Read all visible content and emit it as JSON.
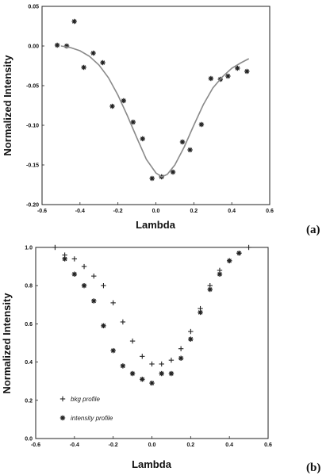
{
  "chart_data": [
    {
      "type": "scatter",
      "panel_label": "(a)",
      "xlabel": "Lambda",
      "ylabel": "Normalized Intensity",
      "xlim": [
        -0.6,
        0.6
      ],
      "ylim": [
        -0.2,
        0.05
      ],
      "xticks": [
        "-0.6",
        "-0.4",
        "-0.2",
        "0.0",
        "0.2",
        "0.4",
        "0.6"
      ],
      "yticks": [
        "0.05",
        "0.00",
        "-0.05",
        "-0.10",
        "-0.15",
        "-0.20"
      ],
      "series": [
        {
          "marker": "asterisk",
          "color": "#222222",
          "points": [
            [
              -0.52,
              0.001
            ],
            [
              -0.47,
              0.0
            ],
            [
              -0.43,
              0.031
            ],
            [
              -0.38,
              -0.027
            ],
            [
              -0.33,
              -0.009
            ],
            [
              -0.28,
              -0.021
            ],
            [
              -0.23,
              -0.076
            ],
            [
              -0.17,
              -0.069
            ],
            [
              -0.12,
              -0.096
            ],
            [
              -0.07,
              -0.117
            ],
            [
              -0.02,
              -0.167
            ],
            [
              0.03,
              -0.165
            ],
            [
              0.09,
              -0.159
            ],
            [
              0.14,
              -0.121
            ],
            [
              0.18,
              -0.131
            ],
            [
              0.24,
              -0.099
            ],
            [
              0.29,
              -0.041
            ],
            [
              0.34,
              -0.042
            ],
            [
              0.38,
              -0.038
            ],
            [
              0.43,
              -0.028
            ],
            [
              0.48,
              -0.032
            ]
          ]
        },
        {
          "style": "fit-curve",
          "color": "#8a8a8a",
          "points": [
            [
              -0.5,
              0.0
            ],
            [
              -0.45,
              -0.002
            ],
            [
              -0.4,
              -0.006
            ],
            [
              -0.35,
              -0.013
            ],
            [
              -0.3,
              -0.024
            ],
            [
              -0.25,
              -0.04
            ],
            [
              -0.2,
              -0.062
            ],
            [
              -0.15,
              -0.088
            ],
            [
              -0.1,
              -0.116
            ],
            [
              -0.05,
              -0.143
            ],
            [
              0.0,
              -0.16
            ],
            [
              0.03,
              -0.165
            ],
            [
              0.06,
              -0.162
            ],
            [
              0.1,
              -0.15
            ],
            [
              0.15,
              -0.127
            ],
            [
              0.2,
              -0.1
            ],
            [
              0.25,
              -0.074
            ],
            [
              0.3,
              -0.053
            ],
            [
              0.35,
              -0.039
            ],
            [
              0.4,
              -0.028
            ],
            [
              0.45,
              -0.021
            ],
            [
              0.49,
              -0.016
            ]
          ]
        }
      ]
    },
    {
      "type": "scatter",
      "panel_label": "(b)",
      "xlabel": "Lambda",
      "ylabel": "Normalized Intensity",
      "xlim": [
        -0.6,
        0.6
      ],
      "ylim": [
        0.0,
        1.0
      ],
      "xticks": [
        "-0.6",
        "-0.4",
        "-0.2",
        "0.0",
        "0.2",
        "0.4",
        "0.6"
      ],
      "yticks": [
        "1.0",
        "0.8",
        "0.6",
        "0.4",
        "0.2",
        "0.0"
      ],
      "series": [
        {
          "name": "bkg profile",
          "marker": "plus",
          "color": "#222222",
          "points": [
            [
              -0.5,
              1.0
            ],
            [
              -0.45,
              0.96
            ],
            [
              -0.4,
              0.94
            ],
            [
              -0.35,
              0.9
            ],
            [
              -0.3,
              0.85
            ],
            [
              -0.25,
              0.8
            ],
            [
              -0.2,
              0.71
            ],
            [
              -0.15,
              0.61
            ],
            [
              -0.1,
              0.51
            ],
            [
              -0.05,
              0.43
            ],
            [
              0.0,
              0.39
            ],
            [
              0.05,
              0.39
            ],
            [
              0.1,
              0.41
            ],
            [
              0.15,
              0.47
            ],
            [
              0.2,
              0.56
            ],
            [
              0.25,
              0.68
            ],
            [
              0.3,
              0.8
            ],
            [
              0.35,
              0.88
            ],
            [
              0.4,
              0.93
            ],
            [
              0.45,
              0.97
            ],
            [
              0.5,
              1.0
            ]
          ]
        },
        {
          "name": "intensity profile",
          "marker": "asterisk",
          "color": "#222222",
          "points": [
            [
              -0.45,
              0.94
            ],
            [
              -0.4,
              0.86
            ],
            [
              -0.35,
              0.8
            ],
            [
              -0.3,
              0.72
            ],
            [
              -0.25,
              0.59
            ],
            [
              -0.2,
              0.46
            ],
            [
              -0.15,
              0.38
            ],
            [
              -0.1,
              0.34
            ],
            [
              -0.05,
              0.31
            ],
            [
              0.0,
              0.29
            ],
            [
              0.05,
              0.34
            ],
            [
              0.1,
              0.34
            ],
            [
              0.15,
              0.42
            ],
            [
              0.2,
              0.52
            ],
            [
              0.25,
              0.66
            ],
            [
              0.3,
              0.78
            ],
            [
              0.35,
              0.86
            ],
            [
              0.4,
              0.93
            ],
            [
              0.45,
              0.97
            ]
          ]
        }
      ],
      "legend": [
        "bkg profile",
        "intensity profile"
      ],
      "legend_position": "lower-left"
    }
  ]
}
